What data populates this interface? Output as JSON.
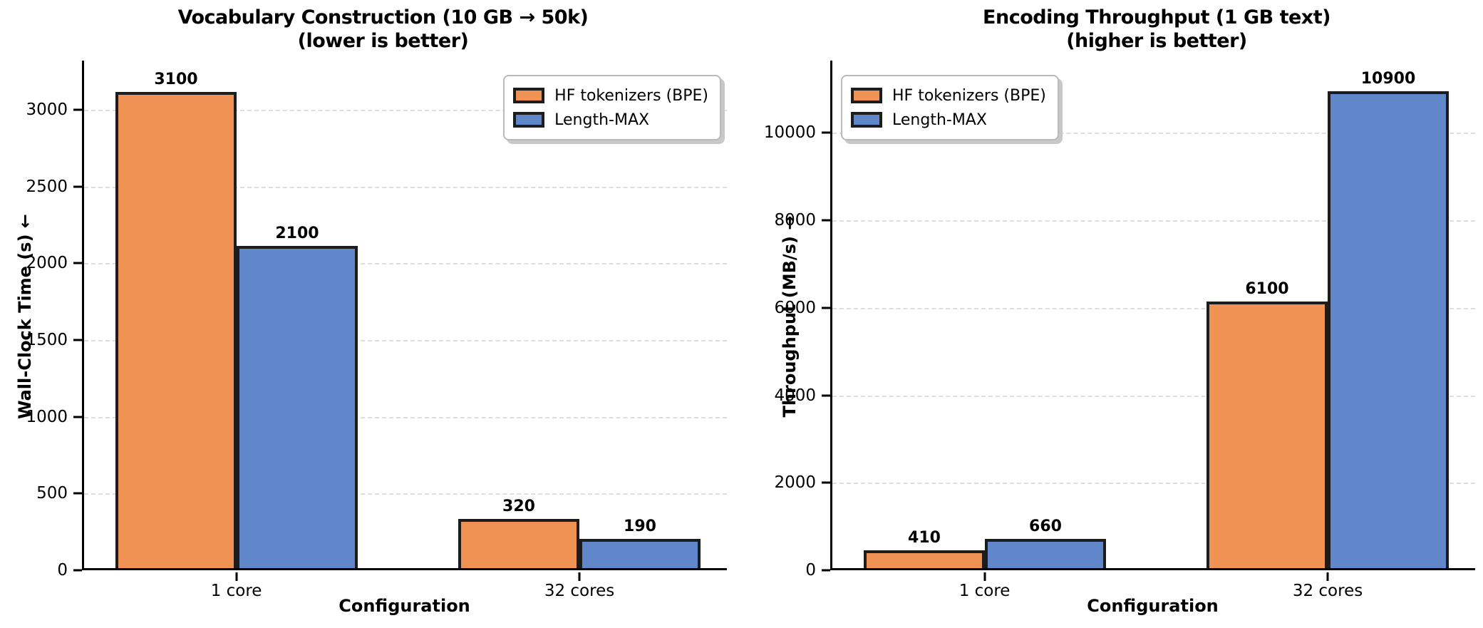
{
  "figure": {
    "background": "#ffffff",
    "bar_edge_color": "#1c1c1c",
    "grid_color": "#dedede",
    "legend_items": [
      {
        "label": "HF tokenizers (BPE)",
        "color": "#EF9253"
      },
      {
        "label": "Length-MAX",
        "color": "#6187CB"
      }
    ]
  },
  "chart_data": [
    {
      "type": "bar",
      "title": "Vocabulary Construction (10 GB → 50k)",
      "subtitle": "(lower is better)",
      "xlabel": "Configuration",
      "ylabel": "Wall-Clock Time (s) ←",
      "categories": [
        "1 core",
        "32 cores"
      ],
      "series": [
        {
          "name": "HF tokenizers (BPE)",
          "color": "#EF9253",
          "values": [
            3100,
            320
          ]
        },
        {
          "name": "Length-MAX",
          "color": "#6187CB",
          "values": [
            2100,
            190
          ]
        }
      ],
      "value_labels": [
        [
          "3100",
          "320"
        ],
        [
          "2100",
          "190"
        ]
      ],
      "yticks": [
        0,
        500,
        1000,
        1500,
        2000,
        2500,
        3000
      ],
      "ylim": [
        0,
        3320
      ],
      "grid": "horizontal-dashed",
      "legend_position": "upper-right"
    },
    {
      "type": "bar",
      "title": "Encoding Throughput (1 GB text)",
      "subtitle": "(higher is better)",
      "xlabel": "Configuration",
      "ylabel": "Throughput (MB/s) →",
      "categories": [
        "1 core",
        "32 cores"
      ],
      "series": [
        {
          "name": "HF tokenizers (BPE)",
          "color": "#EF9253",
          "values": [
            410,
            6100
          ]
        },
        {
          "name": "Length-MAX",
          "color": "#6187CB",
          "values": [
            660,
            10900
          ]
        }
      ],
      "value_labels": [
        [
          "410",
          "6100"
        ],
        [
          "660",
          "10900"
        ]
      ],
      "yticks": [
        0,
        2000,
        4000,
        6000,
        8000,
        10000
      ],
      "ylim": [
        0,
        11650
      ],
      "grid": "horizontal-dashed",
      "legend_position": "upper-left"
    }
  ]
}
